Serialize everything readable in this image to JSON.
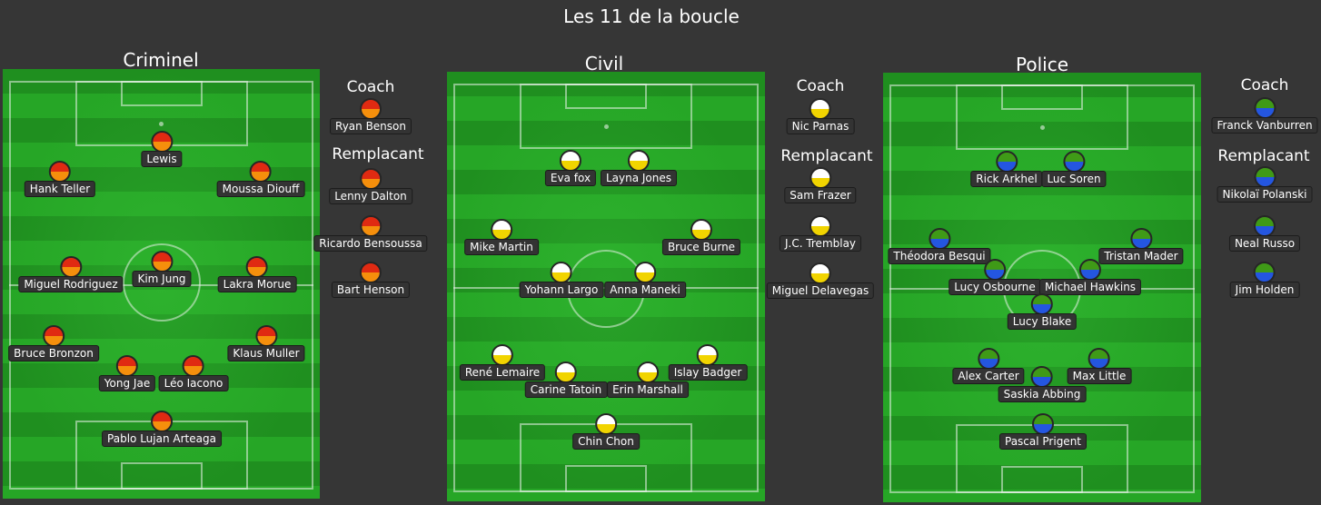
{
  "title": "Les 11 de la boucle",
  "labels": {
    "coach": "Coach",
    "subs": "Remplacant"
  },
  "teams": [
    {
      "name": "Criminel",
      "colors": {
        "top": "#e02a12",
        "bottom": "#f58f0c"
      },
      "coach": "Ryan Benson",
      "subs": [
        "Lenny Dalton",
        "Ricardo Bensoussa",
        "Bart Henson"
      ],
      "players": [
        "Lewis",
        "Hank Teller",
        "Moussa Diouff",
        "Kim Jung",
        "Miguel Rodriguez",
        "Lakra Morue",
        "Bruce Bronzon",
        "Klaus Muller",
        "Yong Jae",
        "Léo Iacono",
        "Pablo Lujan Arteaga"
      ]
    },
    {
      "name": "Civil",
      "colors": {
        "top": "#ffffff",
        "bottom": "#f1d400"
      },
      "coach": "Nic Parnas",
      "subs": [
        "Sam Frazer",
        "J.C. Tremblay",
        "Miguel Delavegas"
      ],
      "players": [
        "Eva fox",
        "Layna Jones",
        "Mike Martin",
        "Bruce Burne",
        "Yohann Largo",
        "Anna Maneki",
        "René Lemaire",
        "Islay Badger",
        "Carine Tatoin",
        "Erin Marshall",
        "Chin Chon"
      ]
    },
    {
      "name": "Police",
      "colors": {
        "top": "#3f9a17",
        "bottom": "#2456e0"
      },
      "coach": "Franck Vanburren",
      "subs": [
        "Nikolaï Polanski",
        "Neal Russo",
        "Jim Holden"
      ],
      "players": [
        "Rick Arkhel",
        "Luc Soren",
        "Théodora Besqui",
        "Tristan Mader",
        "Lucy Osbourne",
        "Michael Hawkins",
        "Lucy Blake",
        "Alex Carter",
        "Max Little",
        "Saskia Abbing",
        "Pascal Prigent"
      ]
    }
  ]
}
